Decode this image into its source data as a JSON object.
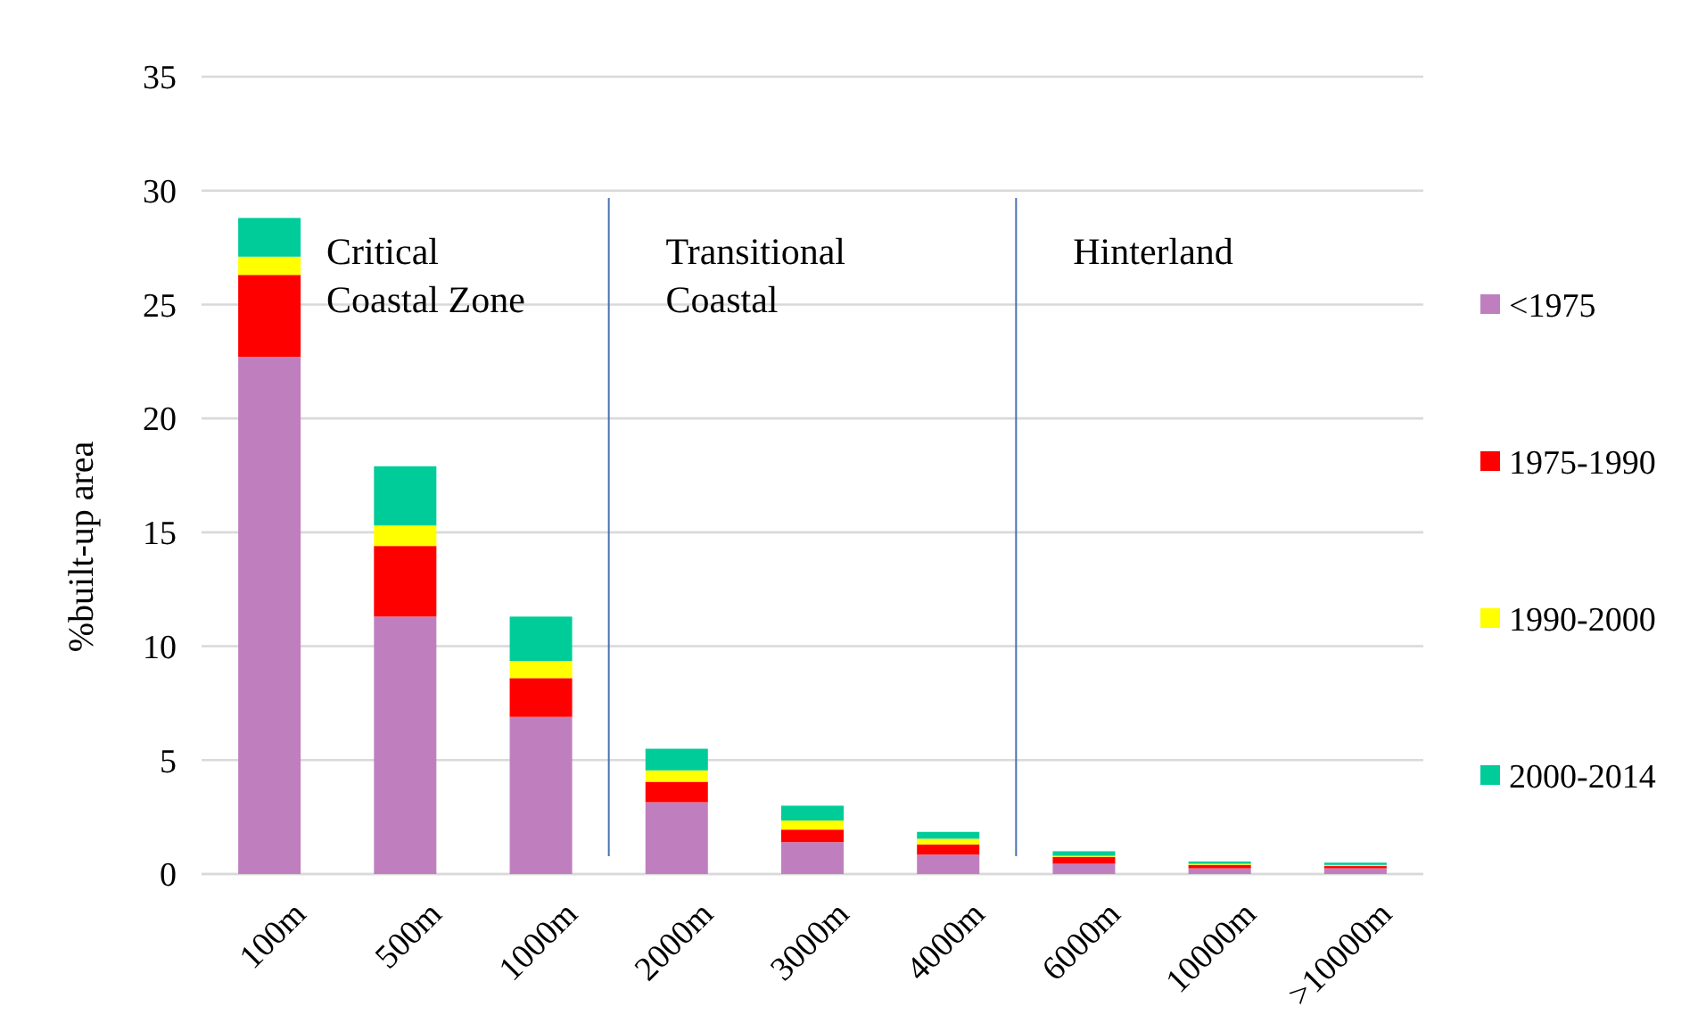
{
  "chart_data": {
    "type": "bar",
    "stacked": true,
    "ylabel": "%built-up area",
    "categories": [
      "100m",
      "500m",
      "1000m",
      "2000m",
      "3000m",
      "4000m",
      "6000m",
      "10000m",
      ">10000m"
    ],
    "series": [
      {
        "name": "<1975",
        "color": "#bf7fbf",
        "values": [
          22.7,
          11.3,
          6.9,
          3.15,
          1.4,
          0.85,
          0.45,
          0.25,
          0.25
        ]
      },
      {
        "name": "1975-1990",
        "color": "#ff0000",
        "values": [
          3.6,
          3.1,
          1.7,
          0.9,
          0.55,
          0.45,
          0.3,
          0.15,
          0.1
        ]
      },
      {
        "name": "1990-2000",
        "color": "#ffff00",
        "values": [
          0.8,
          0.9,
          0.75,
          0.5,
          0.4,
          0.25,
          0.05,
          0.05,
          0.05
        ]
      },
      {
        "name": "2000-2014",
        "color": "#00cc99",
        "values": [
          1.7,
          2.6,
          1.95,
          0.95,
          0.65,
          0.3,
          0.2,
          0.1,
          0.1
        ]
      }
    ],
    "ylim": [
      0,
      35
    ],
    "yticks": [
      0,
      5,
      10,
      15,
      20,
      25,
      30,
      35
    ],
    "grid": "y",
    "legend": "right",
    "annotations": [
      "Critical\nCoastal Zone",
      "Transitional\nCoastal",
      "Hinterland"
    ]
  }
}
